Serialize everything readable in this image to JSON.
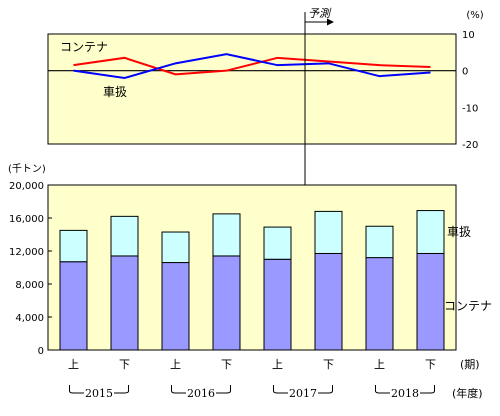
{
  "chart_data": [
    {
      "type": "line",
      "categories": [
        "上",
        "下",
        "上",
        "下",
        "上",
        "下",
        "上",
        "下"
      ],
      "series": [
        {
          "name": "コンテナ",
          "color": "#ff0000",
          "values": [
            1.5,
            3.5,
            -1.0,
            0.0,
            3.5,
            2.5,
            1.5,
            1.0
          ]
        },
        {
          "name": "車扱",
          "color": "#0000ff",
          "values": [
            0.0,
            -2.0,
            2.0,
            4.5,
            1.5,
            2.0,
            -1.5,
            -0.5
          ]
        }
      ],
      "unit": "(%)",
      "ylim": [
        -20,
        10
      ],
      "yticks": [
        "10",
        "0",
        "-10",
        "-20"
      ],
      "forecast_label": "予測"
    },
    {
      "type": "bar",
      "categories": [
        "上",
        "下",
        "上",
        "下",
        "上",
        "下",
        "上",
        "下"
      ],
      "series": [
        {
          "name": "コンテナ",
          "color": "#9999ff",
          "values": [
            10700,
            11400,
            10600,
            11400,
            11000,
            11700,
            11200,
            11700
          ]
        },
        {
          "name": "車扱",
          "color": "#ccffff",
          "values": [
            3800,
            4800,
            3700,
            5100,
            3900,
            5100,
            3800,
            5200
          ]
        }
      ],
      "unit": "(千トン)",
      "ylim": [
        0,
        20000
      ],
      "yticks": [
        "0",
        "4,000",
        "8,000",
        "12,000",
        "16,000",
        "20,000"
      ],
      "period_label": "(期)",
      "year_label": "(年度)",
      "years": [
        "2015",
        "2016",
        "2017",
        "2018"
      ]
    }
  ]
}
